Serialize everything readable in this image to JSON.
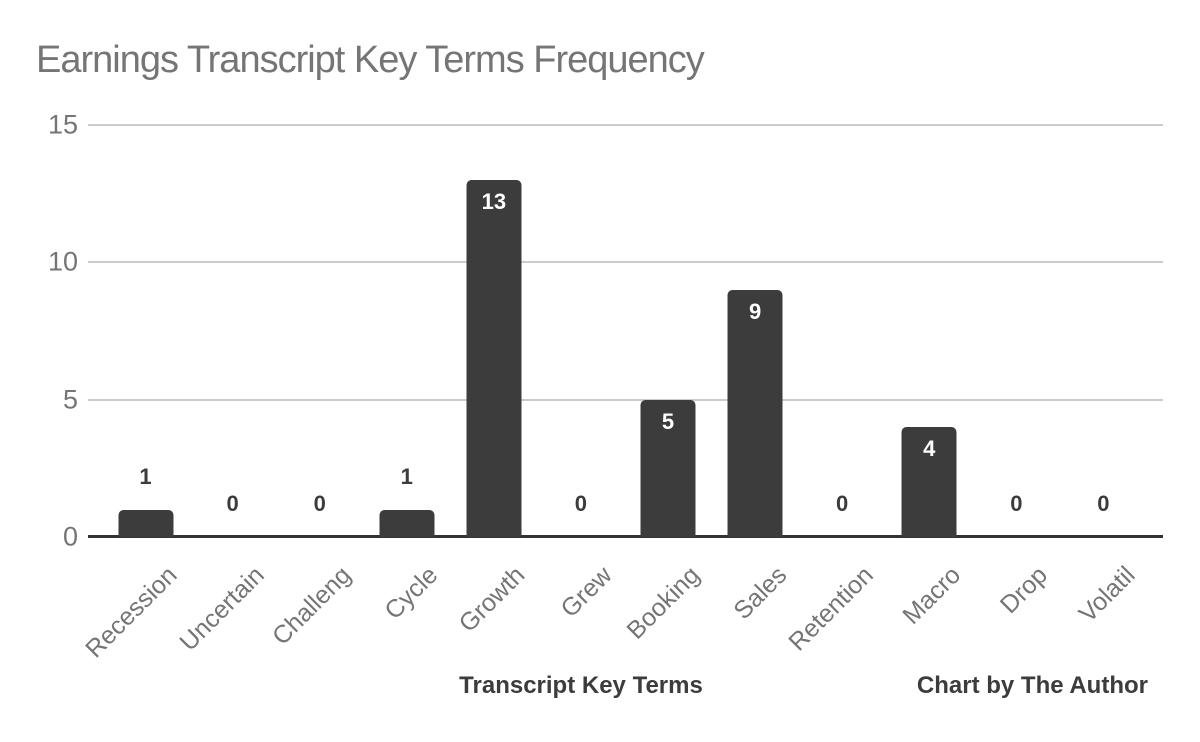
{
  "chart_data": {
    "type": "bar",
    "title": "Earnings Transcript Key Terms Frequency",
    "categories": [
      "Recession",
      "Uncertain",
      "Challeng",
      "Cycle",
      "Growth",
      "Grew",
      "Booking",
      "Sales",
      "Retention",
      "Macro",
      "Drop",
      "Volatil"
    ],
    "values": [
      1,
      0,
      0,
      1,
      13,
      0,
      5,
      9,
      0,
      4,
      0,
      0
    ],
    "xlabel": "Transcript Key Terms",
    "ylabel": "",
    "attribution": "Chart by The Author",
    "ylim": [
      0,
      15
    ],
    "yticks": [
      0,
      5,
      10,
      15
    ],
    "grid": "horizontal",
    "legend": "none",
    "bar_label_style": "inside-top when bar is tall, above bar when short or zero",
    "colors": {
      "bar": "#3c3c3c",
      "title_text": "#757575",
      "axis_text": "#757575",
      "gridline": "#cccccc",
      "baseline": "#333333",
      "value_label_inside": "#ffffff",
      "value_label_outside": "#3c3c3c",
      "footer_text": "#3c3c3c",
      "background": "#ffffff"
    }
  }
}
